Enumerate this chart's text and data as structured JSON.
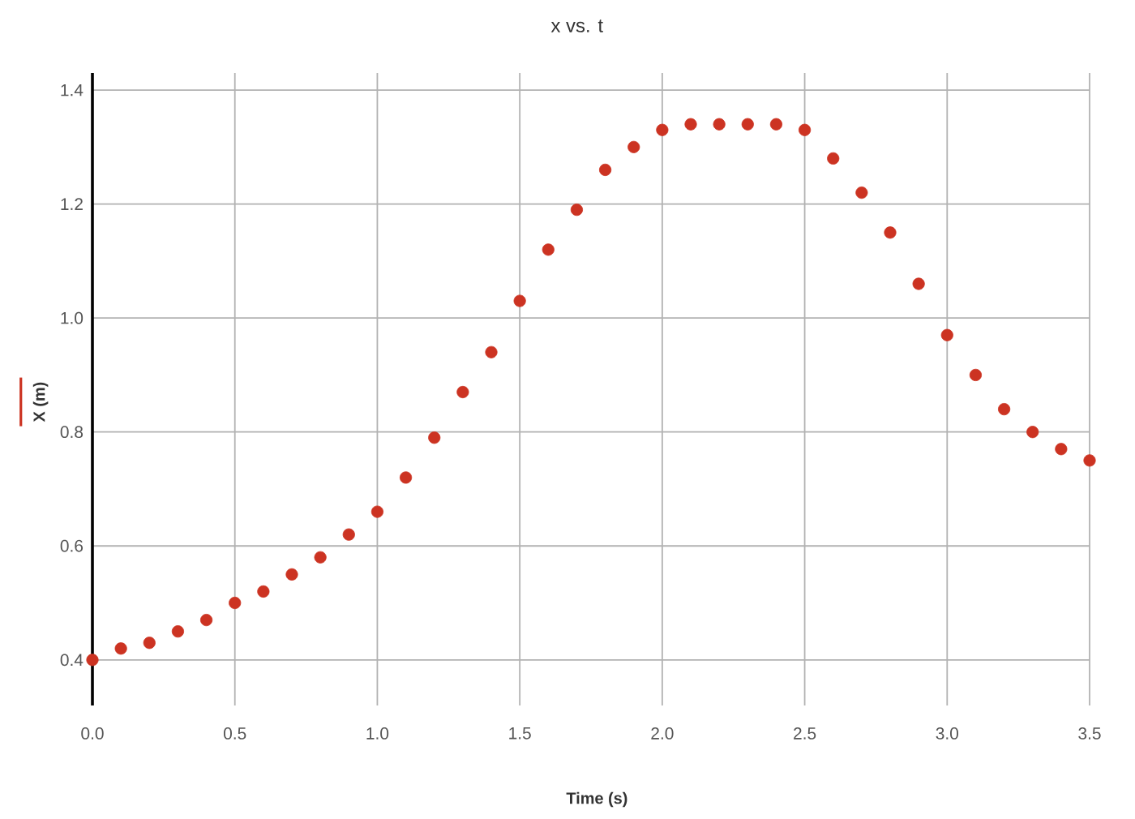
{
  "chart_data": {
    "type": "scatter",
    "title": "x vs. t",
    "xlabel": "Time (s)",
    "ylabel": "X (m)",
    "x": [
      0,
      0.1,
      0.2,
      0.3,
      0.4,
      0.5,
      0.6,
      0.7,
      0.8,
      0.9,
      1.0,
      1.1,
      1.2,
      1.3,
      1.4,
      1.5,
      1.6,
      1.7,
      1.8,
      1.9,
      2.0,
      2.1,
      2.2,
      2.3,
      2.4,
      2.5,
      2.6,
      2.7,
      2.8,
      2.9,
      3.0,
      3.1,
      3.2,
      3.3,
      3.4,
      3.5
    ],
    "values": [
      0.4,
      0.42,
      0.43,
      0.45,
      0.47,
      0.5,
      0.52,
      0.55,
      0.58,
      0.62,
      0.66,
      0.72,
      0.79,
      0.87,
      0.94,
      1.03,
      1.12,
      1.19,
      1.26,
      1.3,
      1.33,
      1.34,
      1.34,
      1.34,
      1.34,
      1.33,
      1.28,
      1.22,
      1.15,
      1.06,
      0.97,
      0.9,
      0.84,
      0.8,
      0.77,
      0.75
    ],
    "color": "#cc3322",
    "marker": "circle",
    "grid": true,
    "xlim": [
      0,
      3.5
    ],
    "ylim": [
      0.32,
      1.43
    ],
    "xticks": [
      {
        "value": 0,
        "label": "0.0"
      },
      {
        "value": 0.5,
        "label": "0.5"
      },
      {
        "value": 1.0,
        "label": "1.0"
      },
      {
        "value": 1.5,
        "label": "1.5"
      },
      {
        "value": 2.0,
        "label": "2.0"
      },
      {
        "value": 2.5,
        "label": "2.5"
      },
      {
        "value": 3.0,
        "label": "3.0"
      },
      {
        "value": 3.5,
        "label": "3.5"
      }
    ],
    "yticks": [
      {
        "value": 0.4,
        "label": "0.4"
      },
      {
        "value": 0.6,
        "label": "0.6"
      },
      {
        "value": 0.8,
        "label": "0.8"
      },
      {
        "value": 1.0,
        "label": "1.0"
      },
      {
        "value": 1.2,
        "label": "1.2"
      },
      {
        "value": 1.4,
        "label": "1.4"
      }
    ]
  }
}
